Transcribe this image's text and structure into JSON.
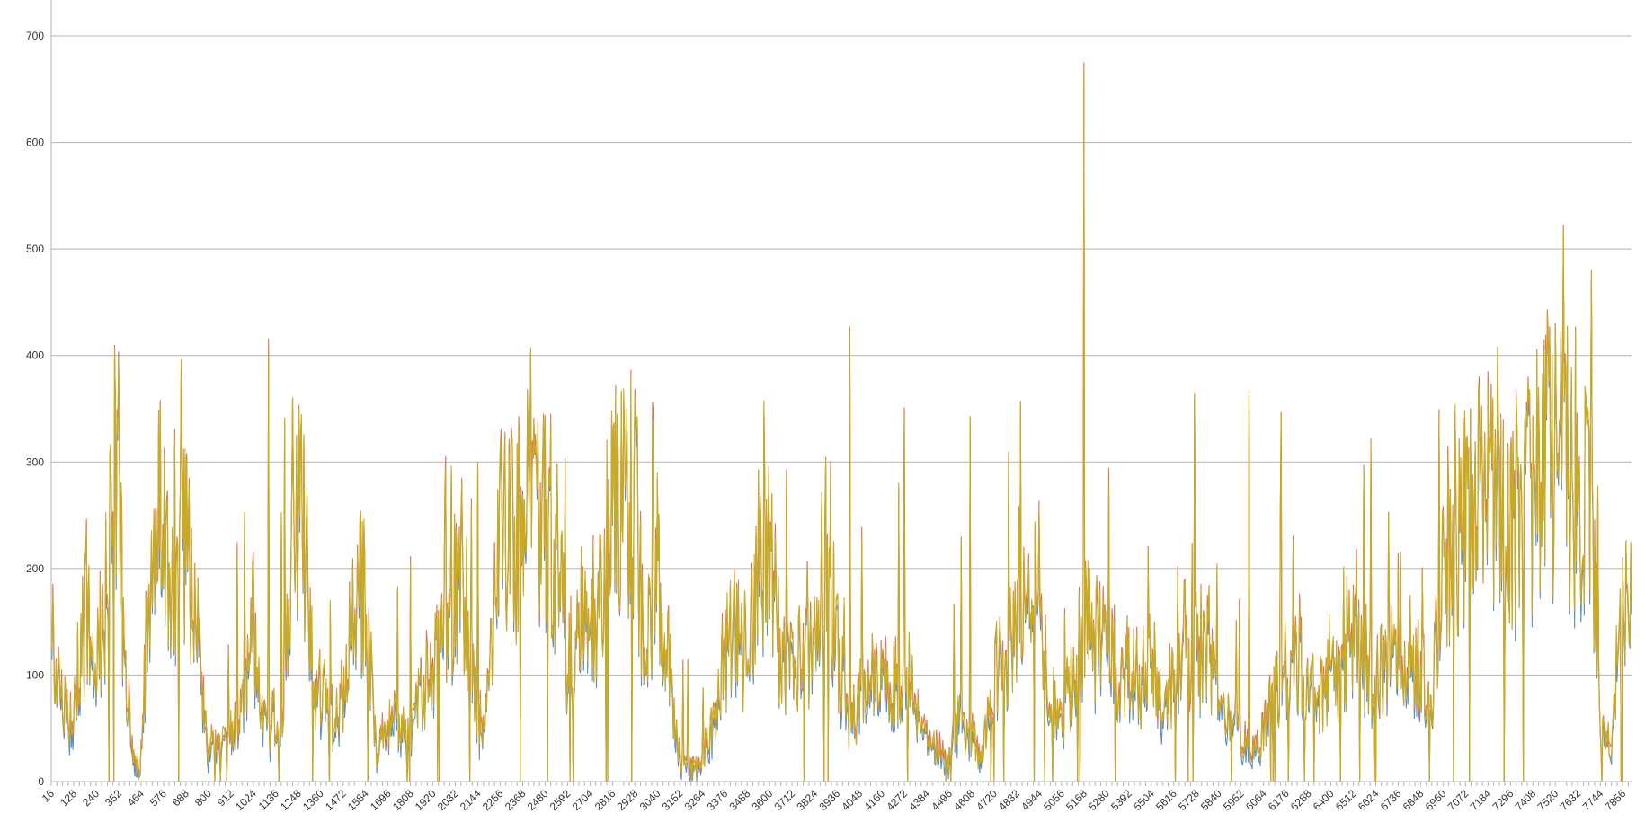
{
  "chart_data": {
    "type": "line",
    "title": "",
    "xlabel": "",
    "ylabel": "",
    "ylim": [
      0,
      700
    ],
    "yticks": [
      0,
      100,
      200,
      300,
      400,
      500,
      600,
      700
    ],
    "xlim": [
      16,
      7900
    ],
    "x_tick_labels": [
      "16",
      "128",
      "240",
      "352",
      "464",
      "576",
      "688",
      "800",
      "912",
      "1024",
      "1136",
      "1248",
      "1360",
      "1472",
      "1584",
      "1696",
      "1808",
      "1920",
      "2032",
      "2144",
      "2256",
      "2368",
      "2480",
      "2592",
      "2704",
      "2816",
      "2928",
      "3040",
      "3152",
      "3264",
      "3376",
      "3488",
      "3600",
      "3712",
      "3824",
      "3936",
      "4048",
      "4160",
      "4272",
      "4384",
      "4496",
      "4608",
      "4720",
      "4832",
      "4944",
      "5056",
      "5168",
      "5280",
      "5392",
      "5504",
      "5616",
      "5728",
      "5840",
      "5952",
      "6064",
      "6176",
      "6288",
      "6400",
      "6512",
      "6624",
      "6736",
      "6848",
      "6960",
      "7072",
      "7184",
      "7296",
      "7408",
      "7520",
      "7632",
      "7744",
      "7856"
    ],
    "grid": true,
    "legend": "none",
    "envelope": [
      [
        16,
        170
      ],
      [
        60,
        70
      ],
      [
        110,
        60
      ],
      [
        160,
        120
      ],
      [
        200,
        160
      ],
      [
        240,
        110
      ],
      [
        290,
        180
      ],
      [
        330,
        320
      ],
      [
        352,
        300
      ],
      [
        380,
        110
      ],
      [
        420,
        30
      ],
      [
        460,
        8
      ],
      [
        520,
        250
      ],
      [
        576,
        230
      ],
      [
        620,
        190
      ],
      [
        688,
        230
      ],
      [
        740,
        160
      ],
      [
        800,
        30
      ],
      [
        860,
        40
      ],
      [
        912,
        45
      ],
      [
        960,
        55
      ],
      [
        1024,
        160
      ],
      [
        1080,
        50
      ],
      [
        1136,
        60
      ],
      [
        1180,
        80
      ],
      [
        1230,
        290
      ],
      [
        1280,
        220
      ],
      [
        1330,
        90
      ],
      [
        1380,
        90
      ],
      [
        1430,
        50
      ],
      [
        1472,
        80
      ],
      [
        1530,
        180
      ],
      [
        1584,
        170
      ],
      [
        1640,
        20
      ],
      [
        1696,
        60
      ],
      [
        1750,
        55
      ],
      [
        1808,
        45
      ],
      [
        1860,
        90
      ],
      [
        1920,
        100
      ],
      [
        1980,
        140
      ],
      [
        2032,
        180
      ],
      [
        2090,
        160
      ],
      [
        2144,
        55
      ],
      [
        2200,
        80
      ],
      [
        2256,
        240
      ],
      [
        2320,
        230
      ],
      [
        2368,
        260
      ],
      [
        2430,
        240
      ],
      [
        2480,
        250
      ],
      [
        2540,
        220
      ],
      [
        2592,
        110
      ],
      [
        2650,
        140
      ],
      [
        2704,
        160
      ],
      [
        2760,
        180
      ],
      [
        2816,
        270
      ],
      [
        2880,
        250
      ],
      [
        2928,
        250
      ],
      [
        2980,
        110
      ],
      [
        3040,
        230
      ],
      [
        3100,
        100
      ],
      [
        3152,
        25
      ],
      [
        3210,
        10
      ],
      [
        3264,
        20
      ],
      [
        3320,
        60
      ],
      [
        3376,
        120
      ],
      [
        3430,
        140
      ],
      [
        3488,
        110
      ],
      [
        3550,
        215
      ],
      [
        3600,
        210
      ],
      [
        3660,
        110
      ],
      [
        3712,
        100
      ],
      [
        3770,
        120
      ],
      [
        3824,
        130
      ],
      [
        3880,
        220
      ],
      [
        3936,
        130
      ],
      [
        3990,
        60
      ],
      [
        4048,
        80
      ],
      [
        4100,
        100
      ],
      [
        4160,
        110
      ],
      [
        4220,
        90
      ],
      [
        4272,
        120
      ],
      [
        4330,
        70
      ],
      [
        4384,
        40
      ],
      [
        4440,
        30
      ],
      [
        4496,
        20
      ],
      [
        4550,
        60
      ],
      [
        4608,
        40
      ],
      [
        4660,
        25
      ],
      [
        4720,
        100
      ],
      [
        4780,
        110
      ],
      [
        4832,
        150
      ],
      [
        4890,
        160
      ],
      [
        4944,
        180
      ],
      [
        5000,
        80
      ],
      [
        5056,
        60
      ],
      [
        5110,
        100
      ],
      [
        5168,
        150
      ],
      [
        5220,
        130
      ],
      [
        5280,
        140
      ],
      [
        5340,
        100
      ],
      [
        5392,
        110
      ],
      [
        5450,
        90
      ],
      [
        5504,
        140
      ],
      [
        5560,
        60
      ],
      [
        5616,
        110
      ],
      [
        5670,
        130
      ],
      [
        5728,
        120
      ],
      [
        5790,
        140
      ],
      [
        5840,
        55
      ],
      [
        5900,
        60
      ],
      [
        5952,
        40
      ],
      [
        6010,
        30
      ],
      [
        6064,
        50
      ],
      [
        6120,
        80
      ],
      [
        6176,
        120
      ],
      [
        6230,
        110
      ],
      [
        6288,
        90
      ],
      [
        6340,
        80
      ],
      [
        6400,
        110
      ],
      [
        6460,
        90
      ],
      [
        6512,
        160
      ],
      [
        6570,
        120
      ],
      [
        6624,
        90
      ],
      [
        6680,
        110
      ],
      [
        6736,
        150
      ],
      [
        6790,
        130
      ],
      [
        6848,
        110
      ],
      [
        6900,
        70
      ],
      [
        6960,
        190
      ],
      [
        7010,
        240
      ],
      [
        7072,
        250
      ],
      [
        7130,
        260
      ],
      [
        7184,
        270
      ],
      [
        7240,
        240
      ],
      [
        7296,
        220
      ],
      [
        7350,
        250
      ],
      [
        7408,
        280
      ],
      [
        7460,
        290
      ],
      [
        7520,
        300
      ],
      [
        7560,
        310
      ],
      [
        7600,
        280
      ],
      [
        7632,
        240
      ],
      [
        7680,
        270
      ],
      [
        7710,
        240
      ],
      [
        7744,
        50
      ],
      [
        7800,
        40
      ],
      [
        7856,
        200
      ],
      [
        7900,
        180
      ]
    ],
    "spikes": [
      [
        330,
        400
      ],
      [
        352,
        403
      ],
      [
        560,
        355
      ],
      [
        1100,
        408
      ],
      [
        1180,
        345
      ],
      [
        1560,
        250
      ],
      [
        2144,
        300
      ],
      [
        2280,
        320
      ],
      [
        2420,
        305
      ],
      [
        2860,
        360
      ],
      [
        2928,
        360
      ],
      [
        3040,
        285
      ],
      [
        4000,
        423
      ],
      [
        4272,
        345
      ],
      [
        4600,
        338
      ],
      [
        4790,
        305
      ],
      [
        4850,
        352
      ],
      [
        5168,
        665
      ],
      [
        5720,
        365
      ],
      [
        5990,
        363
      ],
      [
        6150,
        345
      ],
      [
        6600,
        315
      ],
      [
        6940,
        340
      ],
      [
        7480,
        437
      ],
      [
        7560,
        520
      ],
      [
        7620,
        430
      ],
      [
        7700,
        478
      ]
    ],
    "series": [
      {
        "color": "#5b8fc7",
        "seed": 11,
        "offset": -6
      },
      {
        "color": "#e0734a",
        "seed": 23,
        "offset": 3
      },
      {
        "color": "#c9ac1e",
        "seed": 37,
        "offset": 0
      }
    ]
  }
}
